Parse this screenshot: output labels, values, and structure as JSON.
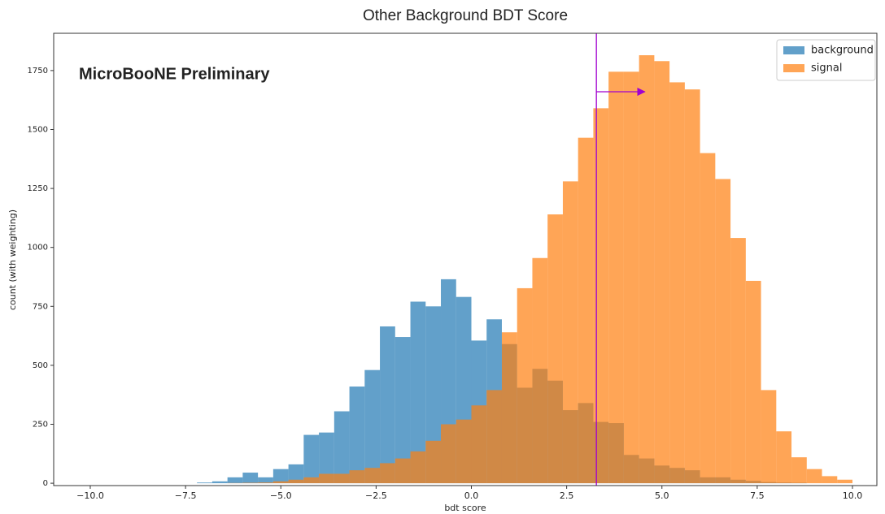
{
  "chart_data": {
    "type": "histogram",
    "title": "Other Background BDT Score",
    "annotation": "MicroBooNE Preliminary",
    "xlabel": "bdt score",
    "ylabel": "count (with weighting)",
    "bins": [
      -10.0,
      -9.6,
      -9.2,
      -8.8,
      -8.4,
      -8.0,
      -7.6,
      -7.2,
      -6.8,
      -6.4,
      -6.0,
      -5.6,
      -5.2,
      -4.8,
      -4.4,
      -4.0,
      -3.6,
      -3.2,
      -2.8,
      -2.4,
      -2.0,
      -1.6,
      -1.2,
      -0.8,
      -0.4,
      0.0,
      0.4,
      0.8,
      1.2,
      1.6,
      2.0,
      2.4,
      2.8,
      3.2,
      3.6,
      4.0,
      4.4,
      4.8,
      5.2,
      5.6,
      6.0,
      6.4,
      6.8,
      7.2,
      7.6,
      8.0,
      8.4,
      8.8,
      9.2,
      9.6,
      10.0
    ],
    "series": [
      {
        "name": "background",
        "color": "#1f77b4",
        "opacity": 0.7,
        "values": [
          0,
          0,
          0,
          0,
          0,
          0,
          0,
          3,
          8,
          25,
          45,
          25,
          60,
          80,
          205,
          215,
          305,
          410,
          480,
          665,
          620,
          770,
          750,
          865,
          790,
          605,
          695,
          590,
          405,
          485,
          435,
          310,
          340,
          260,
          255,
          120,
          105,
          75,
          65,
          55,
          25,
          25,
          15,
          10,
          5,
          3,
          2,
          0,
          0,
          0
        ]
      },
      {
        "name": "signal",
        "color": "#ff7f0e",
        "opacity": 0.7,
        "values": [
          0,
          0,
          0,
          0,
          0,
          0,
          0,
          0,
          0,
          1,
          2,
          3,
          8,
          15,
          25,
          40,
          40,
          55,
          65,
          85,
          105,
          135,
          180,
          250,
          270,
          330,
          395,
          640,
          827,
          955,
          1140,
          1280,
          1465,
          1590,
          1745,
          1745,
          1815,
          1790,
          1700,
          1670,
          1400,
          1290,
          1040,
          858,
          395,
          220,
          110,
          60,
          30,
          15
        ]
      }
    ],
    "cut": {
      "x": 3.28,
      "color": "#a000d0"
    },
    "arrow": {
      "x": [
        3.28,
        4.55
      ],
      "y": 1660,
      "color": "#a000d0"
    },
    "xlim": [
      -10.96,
      10.64
    ],
    "ylim": [
      -10,
      1908
    ],
    "xticks": [
      {
        "value": -10,
        "label": "−10.0"
      },
      {
        "value": -7.5,
        "label": "−7.5"
      },
      {
        "value": -5,
        "label": "−5.0"
      },
      {
        "value": -2.5,
        "label": "−2.5"
      },
      {
        "value": 0,
        "label": "0.0"
      },
      {
        "value": 2.5,
        "label": "2.5"
      },
      {
        "value": 5,
        "label": "5.0"
      },
      {
        "value": 7.5,
        "label": "7.5"
      },
      {
        "value": 10,
        "label": "10.0"
      }
    ],
    "yticks": [
      0,
      250,
      500,
      750,
      1000,
      1250,
      1500,
      1750
    ],
    "grid": false,
    "legend": "upper right"
  }
}
